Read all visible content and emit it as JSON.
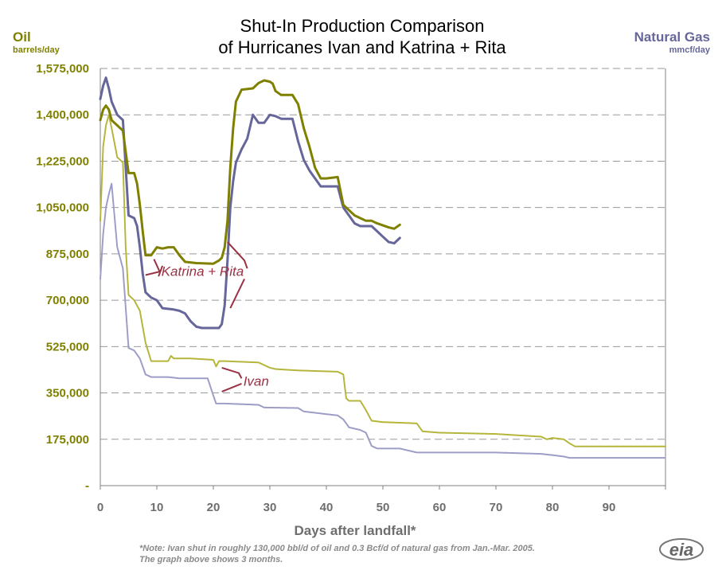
{
  "colors": {
    "oil": "#808000",
    "gas": "#66669a",
    "oil_light": "#b5b53a",
    "gas_light": "#9c9cc6",
    "annotation": "#993344",
    "grid": "#999999",
    "note": "#8a8a8a",
    "logo": "#777777"
  },
  "chart_data": {
    "type": "line",
    "title": [
      "Shut-In Production Comparison",
      "of Hurricanes Ivan and Katrina + Rita"
    ],
    "left_axis": {
      "title": "Oil",
      "unit": "barrels/day"
    },
    "right_axis": {
      "title": "Natural Gas",
      "unit": "mmcf/day"
    },
    "xlabel": "Days after landfall*",
    "xlim": [
      0,
      100
    ],
    "ylim": [
      0,
      1575000
    ],
    "x_ticks": [
      "0",
      "10",
      "20",
      "30",
      "40",
      "50",
      "60",
      "70",
      "80",
      "90"
    ],
    "x_tick_values": [
      0,
      10,
      20,
      30,
      40,
      50,
      60,
      70,
      80,
      90
    ],
    "y_ticks": [
      "-",
      "175,000",
      "350,000",
      "525,000",
      "700,000",
      "875,000",
      "1,050,000",
      "1,225,000",
      "1,400,000",
      "1,575,000"
    ],
    "y_tick_values": [
      0,
      175000,
      350000,
      525000,
      700000,
      875000,
      1050000,
      1225000,
      1400000,
      1575000
    ],
    "grid": "horizontal dashed",
    "annotations": [
      {
        "text": "Katrina + Rita",
        "x": 17,
        "y": 810000
      },
      {
        "text": "Ivan",
        "x": 27,
        "y": 395000
      }
    ],
    "series": [
      {
        "key": "kr_oil",
        "style": "bold",
        "points": [
          [
            0,
            1380000
          ],
          [
            0.5,
            1420000
          ],
          [
            1,
            1435000
          ],
          [
            1.5,
            1420000
          ],
          [
            2,
            1380000
          ],
          [
            3,
            1360000
          ],
          [
            4,
            1340000
          ],
          [
            4.5,
            1260000
          ],
          [
            5,
            1180000
          ],
          [
            6,
            1180000
          ],
          [
            6.5,
            1140000
          ],
          [
            7,
            1060000
          ],
          [
            7.5,
            960000
          ],
          [
            8,
            870000
          ],
          [
            9,
            870000
          ],
          [
            10,
            900000
          ],
          [
            11,
            895000
          ],
          [
            12,
            900000
          ],
          [
            13,
            900000
          ],
          [
            14,
            870000
          ],
          [
            15,
            845000
          ],
          [
            17,
            840000
          ],
          [
            20,
            838000
          ],
          [
            21,
            850000
          ],
          [
            21.5,
            860000
          ],
          [
            22,
            900000
          ],
          [
            22.5,
            1000000
          ],
          [
            23,
            1200000
          ],
          [
            23.5,
            1350000
          ],
          [
            24,
            1450000
          ],
          [
            25,
            1495000
          ],
          [
            27,
            1500000
          ],
          [
            28,
            1520000
          ],
          [
            29,
            1530000
          ],
          [
            30,
            1525000
          ],
          [
            30.5,
            1518000
          ],
          [
            31,
            1490000
          ],
          [
            32,
            1475000
          ],
          [
            34,
            1475000
          ],
          [
            35,
            1440000
          ],
          [
            36,
            1350000
          ],
          [
            37,
            1280000
          ],
          [
            38,
            1200000
          ],
          [
            39,
            1160000
          ],
          [
            40,
            1160000
          ],
          [
            42,
            1165000
          ],
          [
            43,
            1060000
          ],
          [
            44,
            1040000
          ],
          [
            45,
            1020000
          ],
          [
            46,
            1010000
          ],
          [
            47,
            1000000
          ],
          [
            48,
            1000000
          ],
          [
            49,
            990000
          ],
          [
            51,
            975000
          ],
          [
            52,
            970000
          ],
          [
            53,
            985000
          ]
        ]
      },
      {
        "key": "kr_gas",
        "style": "bold",
        "points": [
          [
            0,
            1460000
          ],
          [
            0.5,
            1510000
          ],
          [
            1,
            1540000
          ],
          [
            1.5,
            1500000
          ],
          [
            2,
            1450000
          ],
          [
            3,
            1400000
          ],
          [
            4,
            1380000
          ],
          [
            5,
            1020000
          ],
          [
            6,
            1010000
          ],
          [
            6.5,
            980000
          ],
          [
            7,
            900000
          ],
          [
            7.5,
            800000
          ],
          [
            8,
            730000
          ],
          [
            9,
            710000
          ],
          [
            10,
            700000
          ],
          [
            11,
            670000
          ],
          [
            13,
            665000
          ],
          [
            14,
            660000
          ],
          [
            15,
            650000
          ],
          [
            16,
            620000
          ],
          [
            17,
            600000
          ],
          [
            18,
            595000
          ],
          [
            21,
            595000
          ],
          [
            21.5,
            610000
          ],
          [
            22,
            680000
          ],
          [
            22.5,
            850000
          ],
          [
            23,
            1050000
          ],
          [
            23.5,
            1150000
          ],
          [
            24,
            1220000
          ],
          [
            25,
            1270000
          ],
          [
            26,
            1310000
          ],
          [
            27,
            1400000
          ],
          [
            28,
            1370000
          ],
          [
            29,
            1370000
          ],
          [
            30,
            1400000
          ],
          [
            31,
            1395000
          ],
          [
            32,
            1385000
          ],
          [
            34,
            1385000
          ],
          [
            35,
            1300000
          ],
          [
            36,
            1230000
          ],
          [
            37,
            1190000
          ],
          [
            38,
            1160000
          ],
          [
            39,
            1130000
          ],
          [
            40,
            1130000
          ],
          [
            42,
            1130000
          ],
          [
            43,
            1050000
          ],
          [
            44,
            1020000
          ],
          [
            45,
            990000
          ],
          [
            46,
            980000
          ],
          [
            48,
            980000
          ],
          [
            49,
            960000
          ],
          [
            50,
            940000
          ],
          [
            51,
            920000
          ],
          [
            52,
            915000
          ],
          [
            53,
            935000
          ]
        ]
      },
      {
        "key": "ivan_oil",
        "style": "light",
        "points": [
          [
            0,
            1000000
          ],
          [
            0.5,
            1280000
          ],
          [
            1,
            1360000
          ],
          [
            1.5,
            1400000
          ],
          [
            2,
            1350000
          ],
          [
            3,
            1240000
          ],
          [
            4,
            1220000
          ],
          [
            4.5,
            900000
          ],
          [
            5,
            720000
          ],
          [
            6,
            700000
          ],
          [
            7,
            660000
          ],
          [
            8,
            540000
          ],
          [
            9,
            470000
          ],
          [
            11,
            470000
          ],
          [
            12,
            470000
          ],
          [
            12.5,
            490000
          ],
          [
            13,
            480000
          ],
          [
            16,
            480000
          ],
          [
            20,
            475000
          ],
          [
            20.5,
            450000
          ],
          [
            21,
            470000
          ],
          [
            22,
            470000
          ],
          [
            28,
            465000
          ],
          [
            30,
            445000
          ],
          [
            31,
            440000
          ],
          [
            35,
            435000
          ],
          [
            42,
            430000
          ],
          [
            43,
            420000
          ],
          [
            43.5,
            330000
          ],
          [
            44,
            320000
          ],
          [
            46,
            320000
          ],
          [
            47,
            285000
          ],
          [
            48,
            245000
          ],
          [
            50,
            240000
          ],
          [
            56,
            235000
          ],
          [
            57,
            205000
          ],
          [
            60,
            200000
          ],
          [
            70,
            195000
          ],
          [
            78,
            185000
          ],
          [
            79,
            175000
          ],
          [
            80,
            180000
          ],
          [
            82,
            175000
          ],
          [
            83,
            160000
          ],
          [
            84,
            148000
          ],
          [
            90,
            148000
          ],
          [
            100,
            148000
          ]
        ]
      },
      {
        "key": "ivan_gas",
        "style": "light",
        "points": [
          [
            0,
            780000
          ],
          [
            0.5,
            950000
          ],
          [
            1,
            1050000
          ],
          [
            1.5,
            1100000
          ],
          [
            2,
            1140000
          ],
          [
            3,
            900000
          ],
          [
            4,
            820000
          ],
          [
            5,
            520000
          ],
          [
            6,
            510000
          ],
          [
            7,
            480000
          ],
          [
            8,
            420000
          ],
          [
            9,
            410000
          ],
          [
            12,
            410000
          ],
          [
            14,
            405000
          ],
          [
            16,
            405000
          ],
          [
            19,
            405000
          ],
          [
            20,
            340000
          ],
          [
            20.5,
            310000
          ],
          [
            22,
            310000
          ],
          [
            28,
            305000
          ],
          [
            29,
            295000
          ],
          [
            35,
            293000
          ],
          [
            36,
            280000
          ],
          [
            40,
            270000
          ],
          [
            42,
            265000
          ],
          [
            43,
            250000
          ],
          [
            44,
            220000
          ],
          [
            46,
            210000
          ],
          [
            47,
            200000
          ],
          [
            48,
            150000
          ],
          [
            49,
            140000
          ],
          [
            53,
            140000
          ],
          [
            56,
            125000
          ],
          [
            60,
            125000
          ],
          [
            70,
            125000
          ],
          [
            78,
            120000
          ],
          [
            80,
            115000
          ],
          [
            82,
            110000
          ],
          [
            83,
            105000
          ],
          [
            90,
            105000
          ],
          [
            100,
            105000
          ]
        ]
      }
    ]
  },
  "note": {
    "line1": "*Note: Ivan shut in roughly 130,000 bbl/d of oil and 0.3 Bcf/d of natural gas from Jan.-Mar. 2005.",
    "line2": "The graph above shows 3 months."
  },
  "logo": {
    "text": "eia"
  }
}
